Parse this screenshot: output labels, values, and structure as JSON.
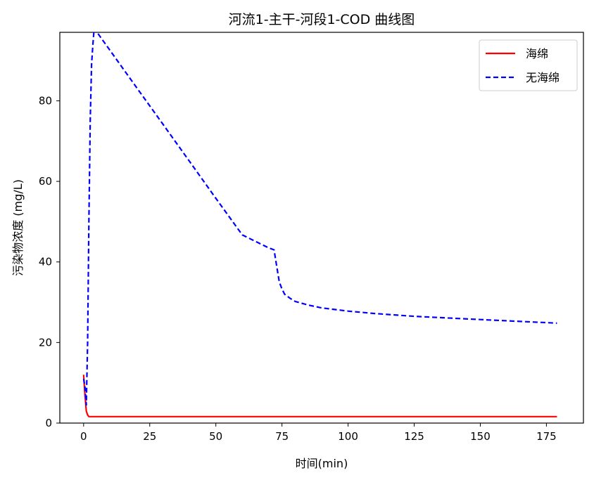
{
  "chart_data": {
    "type": "line",
    "title": "河流1-主干-河段1-COD 曲线图",
    "xlabel": "时间(min)",
    "ylabel": "污染物浓度 (mg/L)",
    "xlim": [
      -9,
      189
    ],
    "ylim": [
      0,
      97
    ],
    "xticks": [
      0,
      25,
      50,
      75,
      100,
      125,
      150,
      175
    ],
    "yticks": [
      0,
      20,
      40,
      60,
      80
    ],
    "legend_position": "upper right",
    "grid": false,
    "series": [
      {
        "name": "海绵",
        "color": "#ff0000",
        "style": "solid",
        "x": [
          0,
          0.5,
          1,
          1.5,
          2,
          3,
          5,
          10,
          50,
          100,
          150,
          179
        ],
        "y": [
          12,
          7,
          3,
          2,
          1.6,
          1.6,
          1.6,
          1.6,
          1.6,
          1.6,
          1.6,
          1.6
        ]
      },
      {
        "name": "无海绵",
        "color": "#0000ff",
        "style": "dashed",
        "x": [
          0,
          0.5,
          1,
          1.5,
          2,
          2.5,
          3,
          3.5,
          4,
          10,
          20,
          30,
          40,
          50,
          60,
          70,
          72,
          73,
          74,
          75,
          76,
          78,
          80,
          85,
          90,
          100,
          110,
          125,
          150,
          179
        ],
        "y": [
          11,
          9,
          4.5,
          20,
          50,
          75,
          89,
          94,
          98,
          92.5,
          83.3,
          74.2,
          65,
          55.8,
          46.7,
          43.5,
          43,
          39,
          35,
          33.3,
          32,
          31,
          30.2,
          29.3,
          28.6,
          27.8,
          27.2,
          26.5,
          25.7,
          24.8
        ]
      }
    ]
  }
}
